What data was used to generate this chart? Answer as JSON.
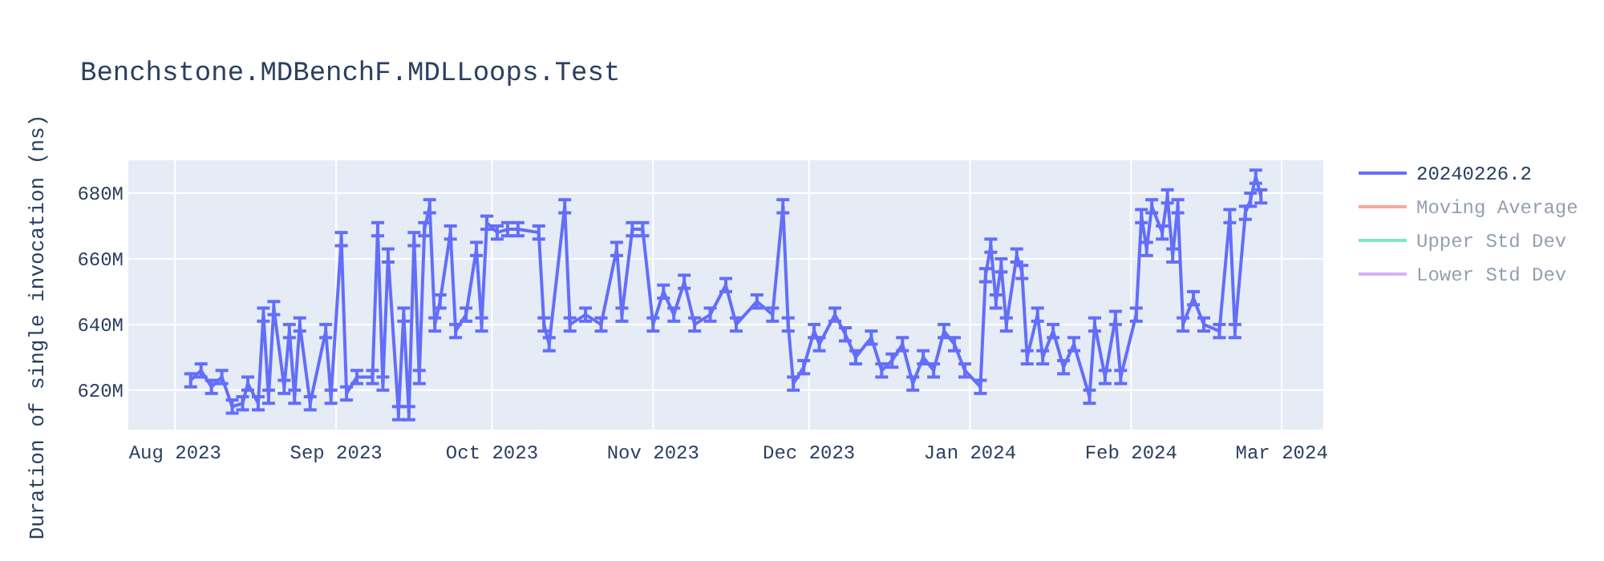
{
  "chart_data": {
    "type": "line",
    "title": "Benchstone.MDBenchF.MDLLoops.Test",
    "ylabel": "Duration of single invocation (ns)",
    "x": [
      "2023-08-04",
      "2023-08-06",
      "2023-08-08",
      "2023-08-10",
      "2023-08-12",
      "2023-08-14",
      "2023-08-15",
      "2023-08-17",
      "2023-08-18",
      "2023-08-19",
      "2023-08-20",
      "2023-08-22",
      "2023-08-23",
      "2023-08-24",
      "2023-08-25",
      "2023-08-27",
      "2023-08-30",
      "2023-08-31",
      "2023-09-02",
      "2023-09-03",
      "2023-09-05",
      "2023-09-08",
      "2023-09-09",
      "2023-09-10",
      "2023-09-11",
      "2023-09-13",
      "2023-09-14",
      "2023-09-15",
      "2023-09-16",
      "2023-09-17",
      "2023-09-18",
      "2023-09-19",
      "2023-09-20",
      "2023-09-21",
      "2023-09-23",
      "2023-09-24",
      "2023-09-26",
      "2023-09-28",
      "2023-09-29",
      "2023-09-30",
      "2023-10-02",
      "2023-10-04",
      "2023-10-06",
      "2023-10-10",
      "2023-10-11",
      "2023-10-12",
      "2023-10-15",
      "2023-10-16",
      "2023-10-19",
      "2023-10-22",
      "2023-10-25",
      "2023-10-26",
      "2023-10-28",
      "2023-10-30",
      "2023-11-01",
      "2023-11-03",
      "2023-11-05",
      "2023-11-07",
      "2023-11-09",
      "2023-11-12",
      "2023-11-15",
      "2023-11-17",
      "2023-11-21",
      "2023-11-24",
      "2023-11-26",
      "2023-11-27",
      "2023-11-28",
      "2023-11-30",
      "2023-12-02",
      "2023-12-03",
      "2023-12-06",
      "2023-12-08",
      "2023-12-10",
      "2023-12-13",
      "2023-12-15",
      "2023-12-17",
      "2023-12-19",
      "2023-12-21",
      "2023-12-23",
      "2023-12-25",
      "2023-12-27",
      "2023-12-29",
      "2023-12-31",
      "2024-01-03",
      "2024-01-04",
      "2024-01-05",
      "2024-01-06",
      "2024-01-07",
      "2024-01-08",
      "2024-01-10",
      "2024-01-11",
      "2024-01-12",
      "2024-01-14",
      "2024-01-15",
      "2024-01-17",
      "2024-01-19",
      "2024-01-21",
      "2024-01-24",
      "2024-01-25",
      "2024-01-27",
      "2024-01-29",
      "2024-01-30",
      "2024-02-02",
      "2024-02-03",
      "2024-02-04",
      "2024-02-05",
      "2024-02-07",
      "2024-02-08",
      "2024-02-09",
      "2024-02-10",
      "2024-02-11",
      "2024-02-13",
      "2024-02-15",
      "2024-02-18",
      "2024-02-20",
      "2024-02-21",
      "2024-02-23",
      "2024-02-24",
      "2024-02-25",
      "2024-02-26"
    ],
    "series": [
      {
        "name": "20240226.2",
        "color": "#636efa",
        "values": [
          623000000,
          626000000,
          621000000,
          624000000,
          615000000,
          616000000,
          622000000,
          616000000,
          643000000,
          618000000,
          645000000,
          621000000,
          638000000,
          618000000,
          640000000,
          616000000,
          638000000,
          618000000,
          666000000,
          619000000,
          624000000,
          624000000,
          669000000,
          622000000,
          661000000,
          613000000,
          643000000,
          613000000,
          666000000,
          624000000,
          669000000,
          676000000,
          640000000,
          647000000,
          668000000,
          638000000,
          643000000,
          663000000,
          640000000,
          671000000,
          668000000,
          669000000,
          669000000,
          668000000,
          640000000,
          634000000,
          676000000,
          640000000,
          643000000,
          640000000,
          663000000,
          643000000,
          669000000,
          669000000,
          640000000,
          650000000,
          643000000,
          653000000,
          640000000,
          643000000,
          652000000,
          640000000,
          647000000,
          643000000,
          676000000,
          640000000,
          622000000,
          627000000,
          638000000,
          634000000,
          643000000,
          637000000,
          630000000,
          636000000,
          626000000,
          629000000,
          634000000,
          622000000,
          630000000,
          626000000,
          638000000,
          634000000,
          626000000,
          621000000,
          655000000,
          664000000,
          647000000,
          658000000,
          640000000,
          661000000,
          656000000,
          630000000,
          643000000,
          630000000,
          638000000,
          627000000,
          634000000,
          618000000,
          640000000,
          624000000,
          642000000,
          624000000,
          643000000,
          673000000,
          663000000,
          676000000,
          668000000,
          679000000,
          661000000,
          676000000,
          640000000,
          648000000,
          640000000,
          638000000,
          673000000,
          638000000,
          674000000,
          678000000,
          685000000,
          679000000
        ],
        "errors": [
          2000000,
          2000000,
          2000000,
          2000000,
          2000000,
          2000000,
          2000000,
          2000000,
          2000000,
          2000000,
          2000000,
          2000000,
          2000000,
          2000000,
          2000000,
          2000000,
          2000000,
          2000000,
          2000000,
          2000000,
          2000000,
          2000000,
          2000000,
          2000000,
          2000000,
          2000000,
          2000000,
          2000000,
          2000000,
          2000000,
          2000000,
          2000000,
          2000000,
          2000000,
          2000000,
          2000000,
          2000000,
          2000000,
          2000000,
          2000000,
          2000000,
          2000000,
          2000000,
          2000000,
          2000000,
          2000000,
          2000000,
          2000000,
          2000000,
          2000000,
          2000000,
          2000000,
          2000000,
          2000000,
          2000000,
          2000000,
          2000000,
          2000000,
          2000000,
          2000000,
          2000000,
          2000000,
          2000000,
          2000000,
          2000000,
          2000000,
          2000000,
          2000000,
          2000000,
          2000000,
          2000000,
          2000000,
          2000000,
          2000000,
          2000000,
          2000000,
          2000000,
          2000000,
          2000000,
          2000000,
          2000000,
          2000000,
          2000000,
          2000000,
          2000000,
          2000000,
          2000000,
          2000000,
          2000000,
          2000000,
          2000000,
          2000000,
          2000000,
          2000000,
          2000000,
          2000000,
          2000000,
          2000000,
          2000000,
          2000000,
          2000000,
          2000000,
          2000000,
          2000000,
          2000000,
          2000000,
          2000000,
          2000000,
          2000000,
          2000000,
          2000000,
          2000000,
          2000000,
          2000000,
          2000000,
          2000000,
          2000000,
          2000000,
          2000000,
          2000000
        ]
      },
      {
        "name": "Moving Average",
        "color": "#f7aa9d",
        "values": [
          null,
          null,
          null,
          null,
          null,
          null,
          null,
          null,
          null,
          null,
          null,
          null,
          null,
          null,
          null,
          null,
          null,
          null,
          null,
          null,
          null,
          null,
          null,
          null,
          null,
          null,
          null,
          null,
          null,
          null,
          null,
          null,
          null,
          null,
          null,
          null,
          null,
          null,
          null,
          null,
          null,
          null,
          null,
          null,
          null,
          null,
          null,
          null,
          null,
          null,
          null,
          null,
          null,
          null,
          null,
          null,
          null,
          null,
          null,
          null,
          null,
          null,
          null,
          null,
          null,
          null,
          null,
          null,
          null,
          null,
          null,
          null,
          null,
          null,
          null,
          null,
          null,
          null,
          null,
          null,
          null,
          null,
          null,
          null,
          null,
          null,
          null,
          null,
          null,
          null,
          null,
          null,
          null,
          null,
          null,
          null,
          null,
          null,
          null,
          null,
          null,
          null,
          null,
          null,
          null,
          null,
          null,
          null,
          null,
          null,
          null,
          null,
          null,
          null,
          null,
          null,
          null,
          null,
          null,
          null
        ]
      },
      {
        "name": "Upper Std Dev",
        "color": "#80e6ca",
        "values": [
          null,
          null,
          null,
          null,
          null,
          null,
          null,
          null,
          null,
          null,
          null,
          null,
          null,
          null,
          null,
          null,
          null,
          null,
          null,
          null,
          null,
          null,
          null,
          null,
          null,
          null,
          null,
          null,
          null,
          null,
          null,
          null,
          null,
          null,
          null,
          null,
          null,
          null,
          null,
          null,
          null,
          null,
          null,
          null,
          null,
          null,
          null,
          null,
          null,
          null,
          null,
          null,
          null,
          null,
          null,
          null,
          null,
          null,
          null,
          null,
          null,
          null,
          null,
          null,
          null,
          null,
          null,
          null,
          null,
          null,
          null,
          null,
          null,
          null,
          null,
          null,
          null,
          null,
          null,
          null,
          null,
          null,
          null,
          null,
          null,
          null,
          null,
          null,
          null,
          null,
          null,
          null,
          null,
          null,
          null,
          null,
          null,
          null,
          null,
          null,
          null,
          null,
          null,
          null,
          null,
          null,
          null,
          null,
          null,
          null,
          null,
          null,
          null,
          null,
          null,
          null,
          null,
          null,
          null,
          null
        ]
      },
      {
        "name": "Lower Std Dev",
        "color": "#d5b1fd",
        "values": [
          null,
          null,
          null,
          null,
          null,
          null,
          null,
          null,
          null,
          null,
          null,
          null,
          null,
          null,
          null,
          null,
          null,
          null,
          null,
          null,
          null,
          null,
          null,
          null,
          null,
          null,
          null,
          null,
          null,
          null,
          null,
          null,
          null,
          null,
          null,
          null,
          null,
          null,
          null,
          null,
          null,
          null,
          null,
          null,
          null,
          null,
          null,
          null,
          null,
          null,
          null,
          null,
          null,
          null,
          null,
          null,
          null,
          null,
          null,
          null,
          null,
          null,
          null,
          null,
          null,
          null,
          null,
          null,
          null,
          null,
          null,
          null,
          null,
          null,
          null,
          null,
          null,
          null,
          null,
          null,
          null,
          null,
          null,
          null,
          null,
          null,
          null,
          null,
          null,
          null,
          null,
          null,
          null,
          null,
          null,
          null,
          null,
          null,
          null,
          null,
          null,
          null,
          null,
          null,
          null,
          null,
          null,
          null,
          null,
          null,
          null,
          null,
          null,
          null,
          null,
          null,
          null,
          null,
          null,
          null
        ]
      }
    ],
    "xlim": [
      "2023-07-23",
      "2024-03-09"
    ],
    "xticks": [
      {
        "value": "2023-08-01",
        "label": "Aug 2023"
      },
      {
        "value": "2023-09-01",
        "label": "Sep 2023"
      },
      {
        "value": "2023-10-01",
        "label": "Oct 2023"
      },
      {
        "value": "2023-11-01",
        "label": "Nov 2023"
      },
      {
        "value": "2023-12-01",
        "label": "Dec 2023"
      },
      {
        "value": "2024-01-01",
        "label": "Jan 2024"
      },
      {
        "value": "2024-02-01",
        "label": "Feb 2024"
      },
      {
        "value": "2024-03-01",
        "label": "Mar 2024"
      }
    ],
    "ylim": [
      608000000,
      690000000
    ],
    "yticks": [
      {
        "value": 620000000,
        "label": "620M"
      },
      {
        "value": 640000000,
        "label": "640M"
      },
      {
        "value": 660000000,
        "label": "660M"
      },
      {
        "value": 680000000,
        "label": "680M"
      }
    ],
    "grid": true,
    "legend": "right",
    "marker": "none",
    "line_style": "solid"
  }
}
